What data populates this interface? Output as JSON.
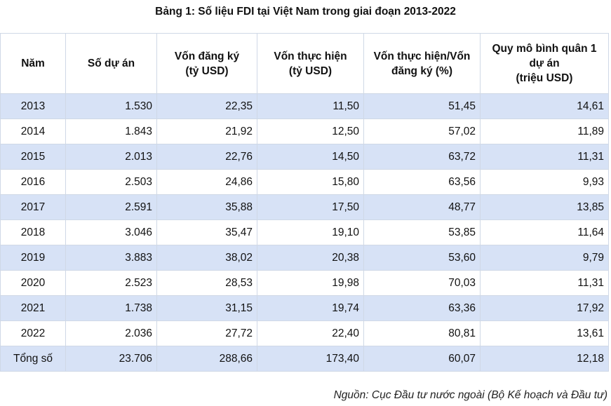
{
  "title": "Bảng 1: Số liệu FDI tại Việt Nam trong giai đoạn 2013-2022",
  "table": {
    "headers": [
      [
        "Năm"
      ],
      [
        "Số dự án"
      ],
      [
        "Vốn đăng ký",
        "(tỷ USD)"
      ],
      [
        "Vốn thực hiện",
        "(tỷ USD)"
      ],
      [
        "Vốn thực hiện/Vốn",
        "đăng ký (%)"
      ],
      [
        "Quy mô bình quân 1",
        "dự án",
        "(triệu USD)"
      ]
    ],
    "rows": [
      [
        "2013",
        "1.530",
        "22,35",
        "11,50",
        "51,45",
        "14,61"
      ],
      [
        "2014",
        "1.843",
        "21,92",
        "12,50",
        "57,02",
        "11,89"
      ],
      [
        "2015",
        "2.013",
        "22,76",
        "14,50",
        "63,72",
        "11,31"
      ],
      [
        "2016",
        "2.503",
        "24,86",
        "15,80",
        "63,56",
        "9,93"
      ],
      [
        "2017",
        "2.591",
        "35,88",
        "17,50",
        "48,77",
        "13,85"
      ],
      [
        "2018",
        "3.046",
        "35,47",
        "19,10",
        "53,85",
        "11,64"
      ],
      [
        "2019",
        "3.883",
        "38,02",
        "20,38",
        "53,60",
        "9,79"
      ],
      [
        "2020",
        "2.523",
        "28,53",
        "19,98",
        "70,03",
        "11,31"
      ],
      [
        "2021",
        "1.738",
        "31,15",
        "19,74",
        "63,36",
        "17,92"
      ],
      [
        "2022",
        "2.036",
        "27,72",
        "22,40",
        "80,81",
        "13,61"
      ],
      [
        "Tổng số",
        "23.706",
        "288,66",
        "173,40",
        "60,07",
        "12,18"
      ]
    ]
  },
  "source": "Nguồn: Cục Đầu tư nước ngoài (Bộ Kế hoạch và Đầu tư)",
  "colors": {
    "band_row": "#d7e2f6",
    "border": "#cfd8e6"
  }
}
